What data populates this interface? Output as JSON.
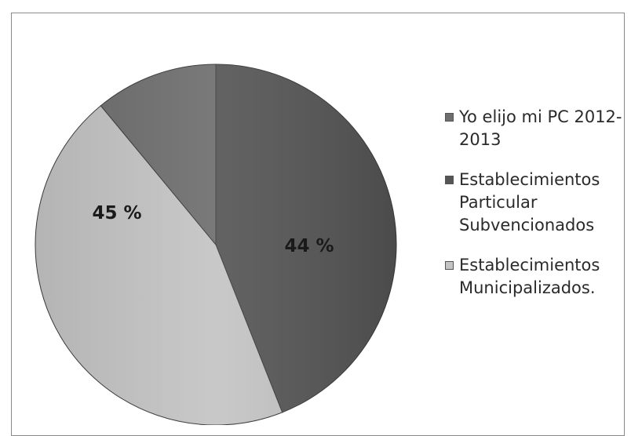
{
  "chart_data": {
    "type": "pie",
    "slices": [
      {
        "name": "Yo elijo mi PC 2012-2013",
        "value": 11,
        "color": "#6e6e6e",
        "label": ""
      },
      {
        "name": "Establecimientos Particular Subvencionados",
        "value": 44,
        "color": "#555555",
        "label": "44 %"
      },
      {
        "name": "Establecimientos Municipalizados.",
        "value": 45,
        "color": "#c4c4c4",
        "label": "45 %"
      }
    ],
    "legend_position": "right",
    "title": ""
  },
  "legend": [
    {
      "text": "Yo elijo mi PC 2012-2013",
      "color": "#6e6e6e"
    },
    {
      "text": "Establecimientos Particular Subvencionados",
      "color": "#555555"
    },
    {
      "text": "Establecimientos Municipalizados.",
      "color": "#c4c4c4"
    }
  ]
}
